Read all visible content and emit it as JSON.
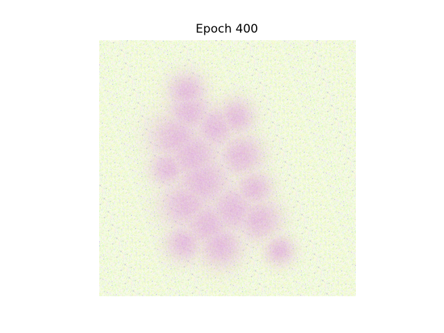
{
  "figure": {
    "title": "Epoch 400"
  },
  "image": {
    "description_colors": {
      "background": "#ffffff",
      "noise_base": "#eef8dc",
      "noise_green": "#dcf5b4",
      "noise_blue": "#c8d0f5",
      "figure_pink": "#e2a2de",
      "figure_magenta": "#d47ed0"
    }
  }
}
